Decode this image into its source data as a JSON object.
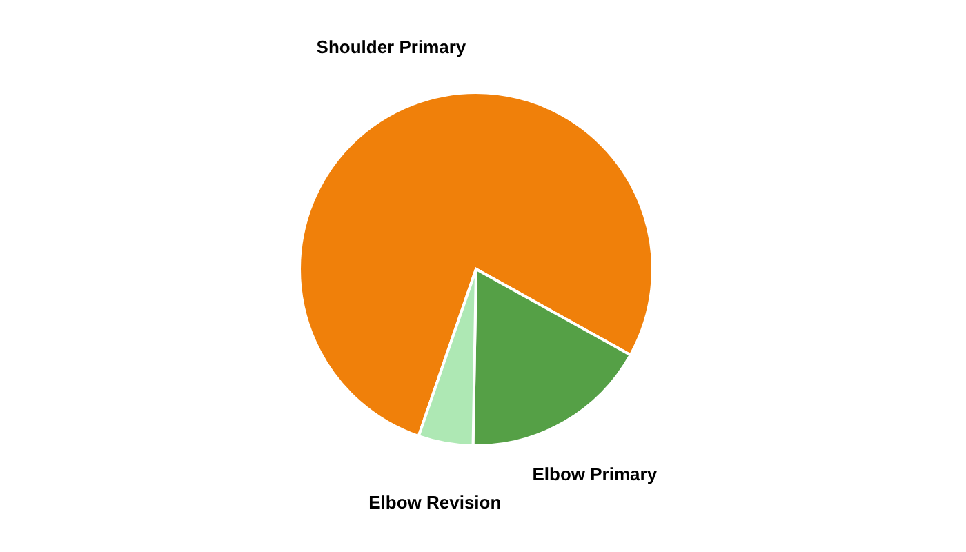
{
  "chart_data": {
    "type": "pie",
    "categories": [
      "Shoulder Primary",
      "Elbow Primary",
      "Elbow Revision"
    ],
    "values": [
      77.8,
      17.2,
      5.0
    ],
    "colors": [
      "#f0800a",
      "#55a046",
      "#aee8b4"
    ],
    "legend": false
  }
}
